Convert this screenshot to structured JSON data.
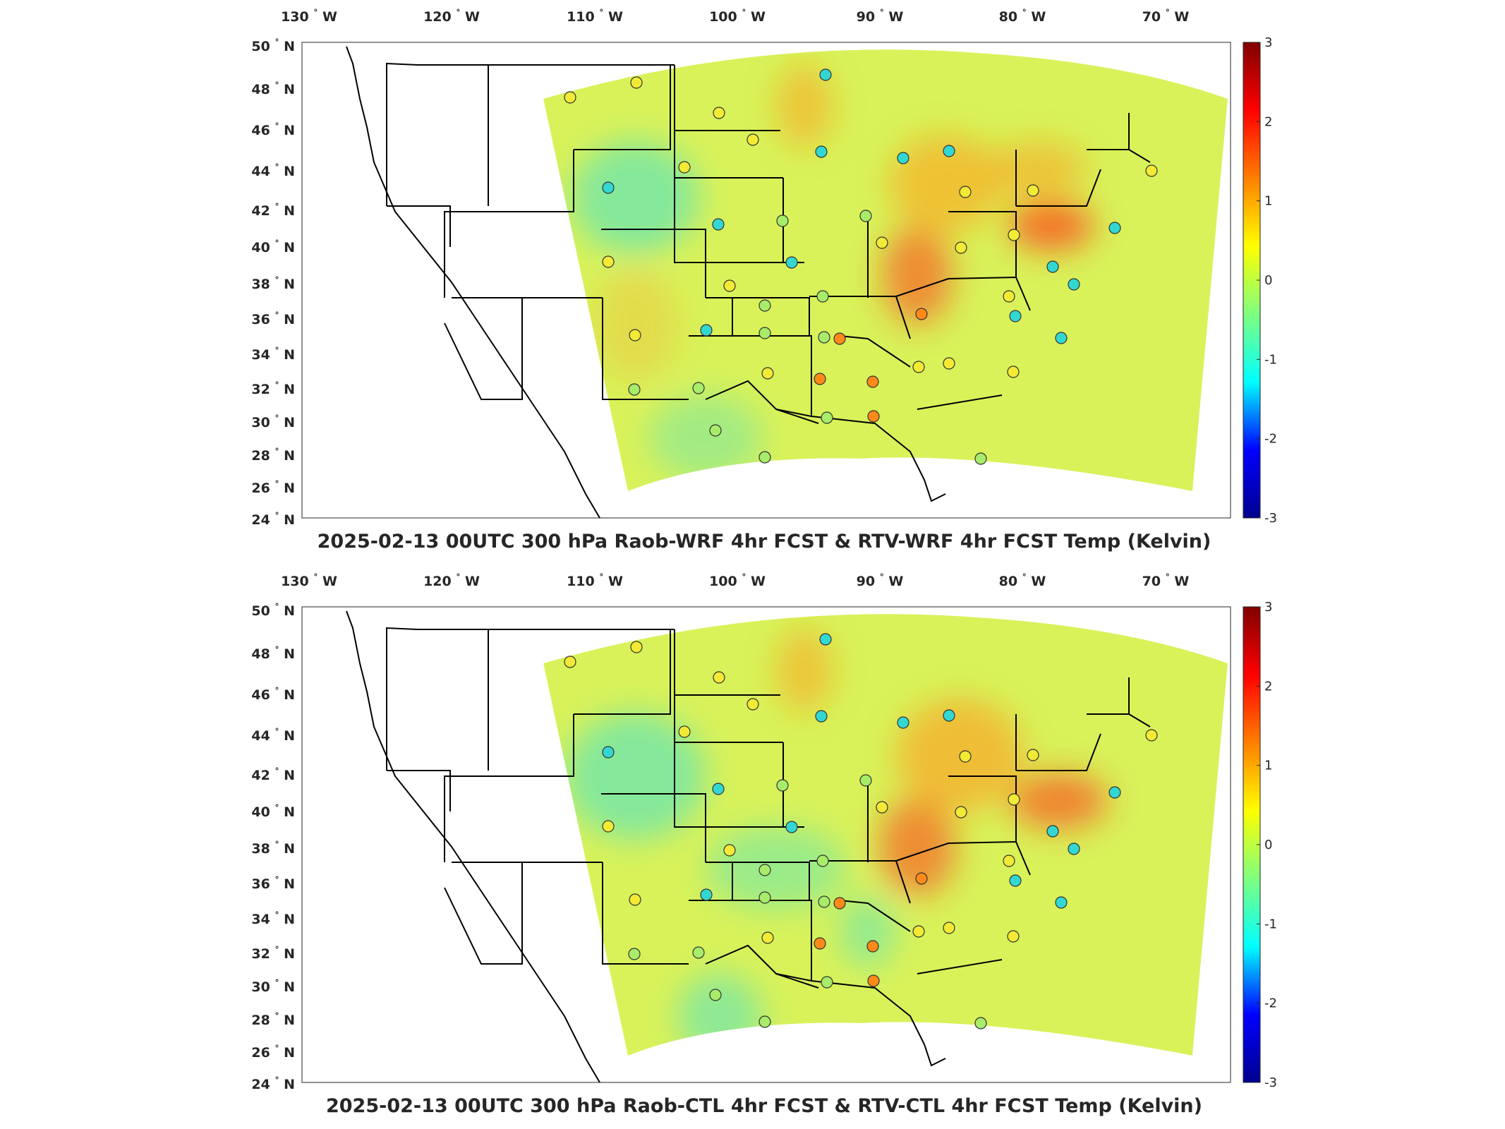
{
  "panels": [
    {
      "title": "2025-02-13 00UTC 300 hPa Raob-WRF 4hr FCST & RTV-WRF 4hr FCST Temp (Kelvin)",
      "variant": "wrf"
    },
    {
      "title": "2025-02-13 00UTC 300 hPa Raob-CTL 4hr FCST & RTV-CTL 4hr FCST Temp (Kelvin)",
      "variant": "ctl"
    }
  ],
  "lon_ticks": [
    {
      "num": "130",
      "dir": "W"
    },
    {
      "num": "120",
      "dir": "W"
    },
    {
      "num": "110",
      "dir": "W"
    },
    {
      "num": "100",
      "dir": "W"
    },
    {
      "num": "90",
      "dir": "W"
    },
    {
      "num": "80",
      "dir": "W"
    },
    {
      "num": "70",
      "dir": "W"
    }
  ],
  "lat_ticks": [
    {
      "num": "50",
      "dir": "N"
    },
    {
      "num": "48",
      "dir": "N"
    },
    {
      "num": "46",
      "dir": "N"
    },
    {
      "num": "44",
      "dir": "N"
    },
    {
      "num": "42",
      "dir": "N"
    },
    {
      "num": "40",
      "dir": "N"
    },
    {
      "num": "38",
      "dir": "N"
    },
    {
      "num": "36",
      "dir": "N"
    },
    {
      "num": "34",
      "dir": "N"
    },
    {
      "num": "32",
      "dir": "N"
    },
    {
      "num": "30",
      "dir": "N"
    },
    {
      "num": "28",
      "dir": "N"
    },
    {
      "num": "26",
      "dir": "N"
    },
    {
      "num": "24",
      "dir": "N"
    }
  ],
  "degree_symbol": "°",
  "colorbar": {
    "min": -3,
    "max": 3,
    "ticks": [
      "3",
      "2",
      "1",
      "0",
      "-1",
      "-2",
      "-3"
    ],
    "colormap": [
      "#00008f",
      "#0000ff",
      "#00ffff",
      "#7fff7f",
      "#ffff00",
      "#ff7f00",
      "#ff0000",
      "#800000"
    ]
  },
  "colors": {
    "domain_base": "#d9f25a",
    "warm": "#ff9a1a",
    "hot": "#ff3a10",
    "cool": "#3fe0d0",
    "border": "#000000"
  }
}
